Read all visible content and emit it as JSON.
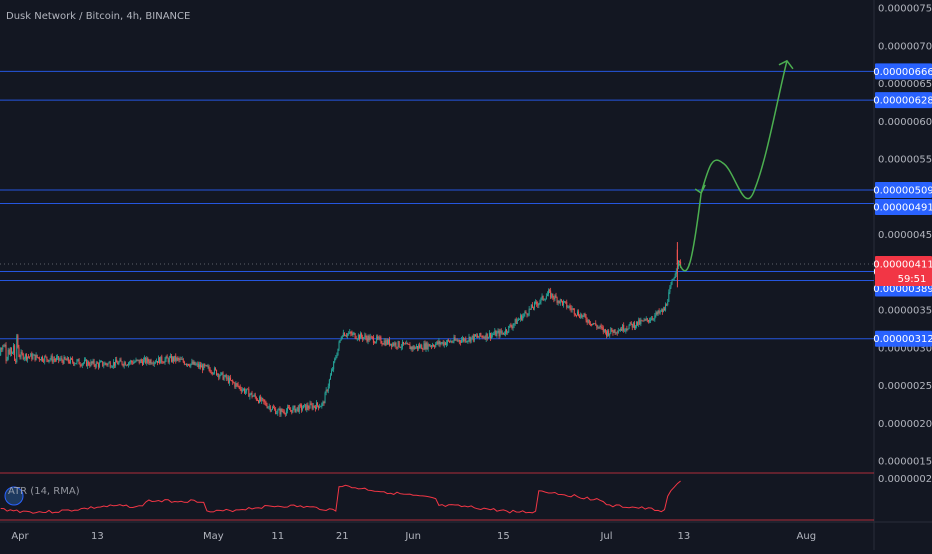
{
  "header": {
    "symbol_line": "Dusk Network / Bitcoin, 4h, BINANCE"
  },
  "indicator": {
    "label": "ATR (14, RMA)",
    "axis_value": "0.00000020"
  },
  "price": {
    "last_value": "0.00000411",
    "countdown": "59:51"
  },
  "colors": {
    "background": "#131722",
    "level_line": "#2962ff",
    "level_badge": "#2962ff",
    "last_price_badge": "#f23645",
    "up_candle": "#26a69a",
    "down_candle": "#ef5350",
    "projection": "#4caf50",
    "atr_line": "#f23645"
  },
  "chart_data": {
    "type": "candlestick",
    "title": "Dusk Network / Bitcoin, 4h, BINANCE",
    "xlabel": "",
    "ylabel": "",
    "x_tick_labels": [
      "Apr",
      "13",
      "May",
      "11",
      "21",
      "Jun",
      "15",
      "Jul",
      "13",
      "Aug"
    ],
    "y_tick_labels": [
      "0.00000750",
      "0.00000700",
      "0.00000650",
      "0.00000600",
      "0.00000550",
      "0.00000450",
      "0.00000350",
      "0.00000300",
      "0.00000250",
      "0.00000200",
      "0.00000150"
    ],
    "ylim": [
      1.4e-06,
      7.6e-06
    ],
    "horizontal_levels": [
      "0.00000666",
      "0.00000628",
      "0.00000509",
      "0.00000491",
      "0.00000401",
      "0.00000389",
      "0.00000312"
    ],
    "last_price": "0.00000411",
    "approx_close_path": [
      {
        "date": "Apr 1",
        "close": 2.9e-06
      },
      {
        "date": "Apr 13",
        "close": 2.78e-06
      },
      {
        "date": "Apr 25",
        "close": 2.85e-06
      },
      {
        "date": "May 1",
        "close": 2.7e-06
      },
      {
        "date": "May 11",
        "close": 2.15e-06
      },
      {
        "date": "May 18",
        "close": 2.25e-06
      },
      {
        "date": "May 21",
        "close": 3.2e-06
      },
      {
        "date": "Jun 1",
        "close": 3e-06
      },
      {
        "date": "Jun 15",
        "close": 3.2e-06
      },
      {
        "date": "Jun 22",
        "close": 3.72e-06
      },
      {
        "date": "Jul 1",
        "close": 3.2e-06
      },
      {
        "date": "Jul 7",
        "close": 3.35e-06
      },
      {
        "date": "Jul 10",
        "close": 3.5e-06
      },
      {
        "date": "Jul 12",
        "close": 4.11e-06
      }
    ],
    "projection_path": [
      {
        "date": "Jul 13",
        "value": 4.2e-06
      },
      {
        "date": "Jul 16",
        "value": 5.05e-06
      },
      {
        "date": "Jul 19",
        "value": 5.45e-06
      },
      {
        "date": "Jul 24",
        "value": 5.1e-06
      },
      {
        "date": "Jul 29",
        "value": 6.8e-06
      }
    ],
    "grid": false,
    "legend": "none"
  }
}
